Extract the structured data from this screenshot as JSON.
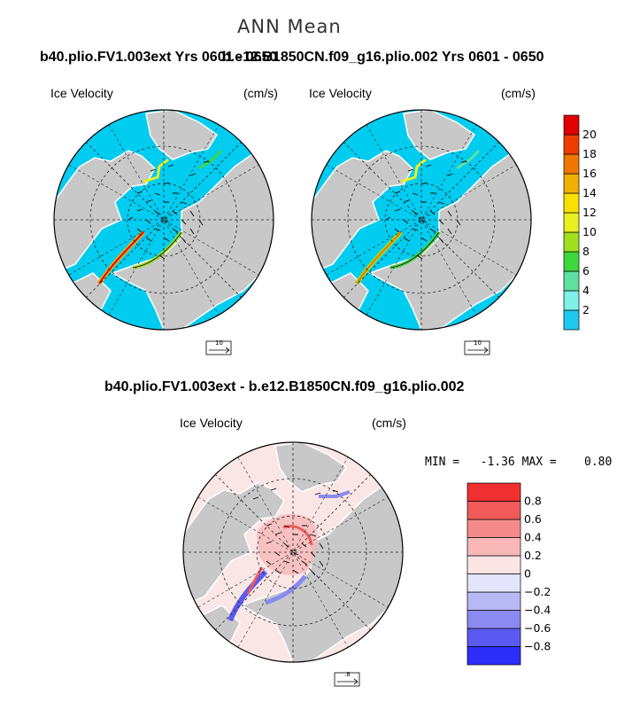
{
  "figure": {
    "title": "ANN Mean",
    "left_case": "b40.plio.FV1.003ext  Yrs 0601 - 0650",
    "right_case": "b.e12.B1850CN.f09_g16.plio.002  Yrs 0601 - 0650",
    "diff_title": "b40.plio.FV1.003ext - b.e12.B1850CN.f09_g16.plio.002"
  },
  "panels": {
    "left": {
      "label": "Ice Velocity",
      "units": "(cm/s)",
      "ref_vector": "10"
    },
    "right": {
      "label": "Ice Velocity",
      "units": "(cm/s)",
      "ref_vector": "10"
    },
    "diff": {
      "label": "Ice Velocity",
      "units": "(cm/s)",
      "ref_vector": ".8",
      "min_max": "MIN =   -1.36 MAX =    0.80"
    }
  },
  "colorbars": {
    "top": {
      "colors": [
        "#1ec8f0",
        "#7ff0e8",
        "#60e0a0",
        "#3ed83e",
        "#a0e020",
        "#e8f020",
        "#f8e000",
        "#f0b000",
        "#f07800",
        "#f03c00",
        "#e00000"
      ],
      "labels": [
        "2",
        "4",
        "6",
        "8",
        "10",
        "12",
        "14",
        "16",
        "18",
        "20"
      ]
    },
    "diff": {
      "colors": [
        "#2d2dfa",
        "#5a5af0",
        "#8a8af0",
        "#b8b8f4",
        "#e4e4fa",
        "#fbe4e4",
        "#f8b8b8",
        "#f48a8a",
        "#f05a5a",
        "#f03030"
      ],
      "labels": [
        "−0.8",
        "−0.6",
        "−0.4",
        "−0.2",
        "0",
        "0.2",
        "0.4",
        "0.6",
        "0.8"
      ]
    }
  },
  "colors": {
    "ocean_ice_free": "#00ccf0",
    "land": "#c8c8c8",
    "diff_background": "#fbe6e6"
  }
}
